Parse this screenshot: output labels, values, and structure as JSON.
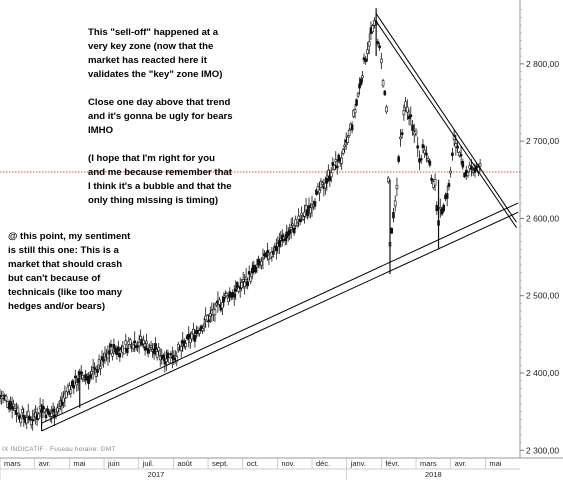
{
  "chart_data": {
    "type": "candlestick",
    "x_axis": {
      "months": [
        "mars",
        "avr.",
        "mai",
        "juin",
        "juil.",
        "août",
        "sept.",
        "oct.",
        "nov.",
        "déc.",
        "janv.",
        "févr.",
        "mars",
        "avr.",
        "mai"
      ],
      "years": [
        "2017",
        "2018"
      ]
    },
    "y_axis": {
      "ticks": [
        "2 300,00",
        "2 400,00",
        "2 500,00",
        "2 600,00",
        "2 700,00",
        "2 800,00"
      ],
      "range": [
        2290,
        2880
      ],
      "grid": false
    },
    "reference_line": {
      "value": 2660,
      "style": "dotted",
      "color": "#d9534f"
    },
    "price_path": [
      [
        0,
        2370
      ],
      [
        0.35,
        2360
      ],
      [
        0.6,
        2345
      ],
      [
        0.9,
        2340
      ],
      [
        1.2,
        2355
      ],
      [
        1.45,
        2345
      ],
      [
        1.7,
        2355
      ],
      [
        2.0,
        2380
      ],
      [
        2.3,
        2395
      ],
      [
        2.6,
        2395
      ],
      [
        2.9,
        2410
      ],
      [
        3.2,
        2430
      ],
      [
        3.5,
        2430
      ],
      [
        3.8,
        2440
      ],
      [
        4.1,
        2440
      ],
      [
        4.4,
        2430
      ],
      [
        4.8,
        2420
      ],
      [
        5.1,
        2425
      ],
      [
        5.4,
        2440
      ],
      [
        5.8,
        2460
      ],
      [
        6.2,
        2480
      ],
      [
        6.5,
        2498
      ],
      [
        6.8,
        2505
      ],
      [
        7.1,
        2520
      ],
      [
        7.5,
        2540
      ],
      [
        7.8,
        2555
      ],
      [
        8.1,
        2570
      ],
      [
        8.4,
        2585
      ],
      [
        8.7,
        2600
      ],
      [
        9.0,
        2620
      ],
      [
        9.3,
        2640
      ],
      [
        9.6,
        2665
      ],
      [
        9.9,
        2680
      ],
      [
        10.2,
        2730
      ],
      [
        10.5,
        2800
      ],
      [
        10.7,
        2840
      ],
      [
        10.85,
        2850
      ],
      [
        11.0,
        2800
      ],
      [
        11.15,
        2740
      ],
      [
        11.25,
        2560
      ],
      [
        11.4,
        2620
      ],
      [
        11.55,
        2700
      ],
      [
        11.7,
        2745
      ],
      [
        11.85,
        2730
      ],
      [
        12.0,
        2710
      ],
      [
        12.1,
        2680
      ],
      [
        12.25,
        2690
      ],
      [
        12.4,
        2665
      ],
      [
        12.55,
        2640
      ],
      [
        12.65,
        2600
      ],
      [
        12.8,
        2620
      ],
      [
        12.95,
        2640
      ],
      [
        13.1,
        2700
      ],
      [
        13.25,
        2690
      ],
      [
        13.4,
        2650
      ],
      [
        13.55,
        2670
      ],
      [
        13.7,
        2660
      ],
      [
        13.85,
        2665
      ]
    ],
    "high_low_spikes": [
      [
        1.2,
        2325,
        2360
      ],
      [
        2.3,
        2355,
        2400
      ],
      [
        11.25,
        2528,
        2650
      ],
      [
        12.65,
        2560,
        2650
      ],
      [
        10.85,
        2810,
        2872
      ]
    ],
    "trendlines": [
      {
        "name": "descending",
        "from": [
          10.85,
          2865
        ],
        "to": [
          14.9,
          2595
        ]
      },
      {
        "name": "descending-2",
        "from": [
          10.85,
          2855
        ],
        "to": [
          14.9,
          2588
        ]
      },
      {
        "name": "ascending",
        "from": [
          1.2,
          2335
        ],
        "to": [
          14.95,
          2620
        ]
      },
      {
        "name": "ascending-2",
        "from": [
          1.2,
          2325
        ],
        "to": [
          14.95,
          2608
        ]
      }
    ]
  },
  "annotations": {
    "top_note": "This \"sell-off\" happened at a\nvery key zone (now that the\nmarket has reacted here it\nvalidates the \"key\" zone IMO)\n\nClose one day above that trend\nand it's gonna be ugly for bears\nIMHO\n\n(I hope that I'm right for you\nand me because remember that\nI think it's a bubble and that the\nonly thing missing is timing)",
    "left_note": "@ this point, my sentiment\nis still this one: This is a\nmarket that should crash\nbut can't because of\ntechnicals (like too many\nhedges and/or bears)"
  },
  "source_label": "IX INDICATIF · Fuseau horaire: GMT",
  "colors": {
    "candles": "#111111",
    "trendline": "#000000",
    "axis_text": "#222222"
  }
}
